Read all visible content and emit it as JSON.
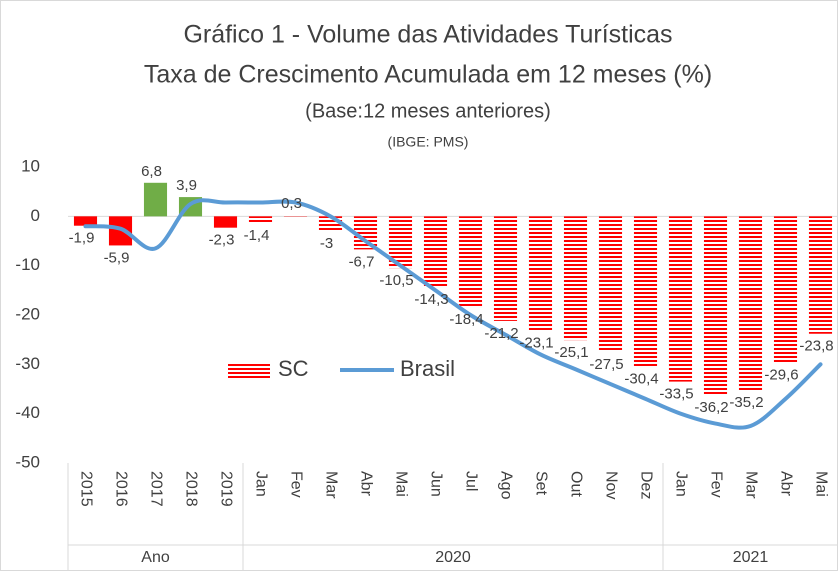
{
  "chart_data": {
    "type": "bar_line",
    "title": [
      "Gráfico 1 - Volume das Atividades Turísticas",
      "Taxa de Crescimento Acumulada em 12 meses (%)",
      "(Base:12 meses anteriores)",
      "(IBGE: PMS)"
    ],
    "categories": [
      "2015",
      "2016",
      "2017",
      "2018",
      "2019",
      "Jan",
      "Fev",
      "Mar",
      "Abr",
      "Mai",
      "Jun",
      "Jul",
      "Ago",
      "Set",
      "Out",
      "Nov",
      "Dez",
      "Jan",
      "Fev",
      "Mar",
      "Abr",
      "Mai"
    ],
    "groups": [
      {
        "label": "Ano",
        "span": 5
      },
      {
        "label": "2020",
        "span": 12
      },
      {
        "label": "2021",
        "span": 5
      }
    ],
    "series": [
      {
        "name": "SC",
        "type": "bar",
        "color": "#ff0000",
        "colors": [
          "#ff0000",
          "#ff0000",
          "#70ad47",
          "#70ad47",
          "#ff0000",
          "#ff0000",
          "#ff0000",
          "#ff0000",
          "#ff0000",
          "#ff0000",
          "#ff0000",
          "#ff0000",
          "#ff0000",
          "#ff0000",
          "#ff0000",
          "#ff0000",
          "#ff0000",
          "#ff0000",
          "#ff0000",
          "#ff0000",
          "#ff0000",
          "#ff0000"
        ],
        "point_styles": [
          "solid",
          "solid",
          "solid",
          "solid",
          "solid",
          "striped",
          "striped",
          "striped",
          "striped",
          "striped",
          "striped",
          "striped",
          "striped",
          "striped",
          "striped",
          "striped",
          "striped",
          "striped",
          "striped",
          "striped",
          "striped",
          "striped"
        ],
        "values": [
          -1.9,
          -5.9,
          6.8,
          3.9,
          -2.3,
          -1.4,
          0.3,
          -3,
          -6.7,
          -10.5,
          -14.3,
          -18.4,
          -21.2,
          -23.1,
          -25.1,
          -27.5,
          -30.4,
          -33.5,
          -36.2,
          -35.2,
          -29.6,
          -23.8
        ],
        "value_labels": [
          "-1,9",
          "-5,9",
          "6,8",
          "3,9",
          "-2,3",
          "-1,4",
          "0,3",
          "-3",
          "-6,7",
          "-10,5",
          "-14,3",
          "-18,4",
          "-21,2",
          "-23,1",
          "-25,1",
          "-27,5",
          "-30,4",
          "-33,5",
          "-36,2",
          "-35,2",
          "-29,6",
          "-23,8"
        ]
      },
      {
        "name": "Brasil",
        "type": "line",
        "color": "#5b9bd5",
        "values": [
          -2,
          -2.5,
          -6.5,
          2.5,
          2.8,
          2.8,
          2.8,
          0,
          -5,
          -10,
          -15,
          -20,
          -24,
          -28,
          -31,
          -34,
          -37,
          -40,
          -42,
          -42.5,
          -37,
          -30
        ]
      }
    ],
    "ylim": [
      -50,
      10
    ],
    "yticks": [
      -50,
      -40,
      -30,
      -20,
      -10,
      0,
      10
    ]
  }
}
